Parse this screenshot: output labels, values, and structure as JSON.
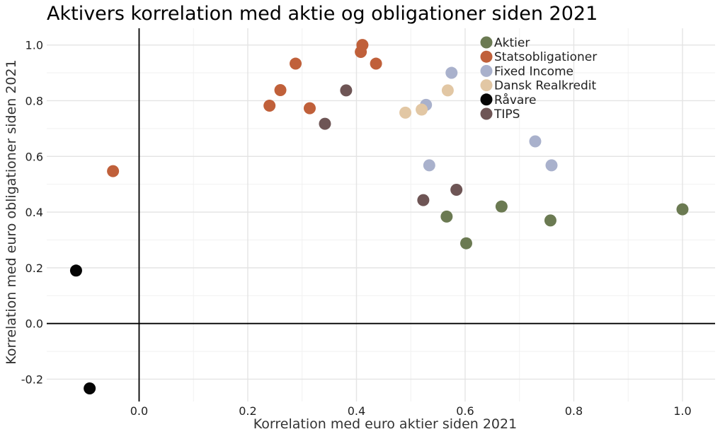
{
  "chart_data": {
    "type": "scatter",
    "title": "Aktivers korrelation med aktie og obligationer siden 2021",
    "xlabel": "Korrelation med euro aktier siden 2021",
    "ylabel": "Korrelation med euro obligationer siden 2021",
    "xlim": [
      -0.17,
      1.06
    ],
    "ylim": [
      -0.28,
      1.06
    ],
    "xticks": [
      0.0,
      0.2,
      0.4,
      0.6,
      0.8,
      1.0
    ],
    "yticks": [
      -0.2,
      0.0,
      0.2,
      0.4,
      0.6,
      0.8,
      1.0
    ],
    "xtick_labels": [
      "0.0",
      "0.2",
      "0.4",
      "0.6",
      "0.8",
      "1.0"
    ],
    "ytick_labels": [
      "-0.2",
      "0.0",
      "0.2",
      "0.4",
      "0.6",
      "0.8",
      "1.0"
    ],
    "grid": true,
    "legend_position": "top-right",
    "series": [
      {
        "name": "Aktier",
        "color": "#6b7a52",
        "points": [
          [
            1.0,
            0.41
          ],
          [
            0.757,
            0.37
          ],
          [
            0.667,
            0.42
          ],
          [
            0.602,
            0.288
          ],
          [
            0.566,
            0.384
          ]
        ]
      },
      {
        "name": "Statsobligationer",
        "color": "#c0603a",
        "points": [
          [
            0.411,
            1.0
          ],
          [
            0.408,
            0.975
          ],
          [
            0.436,
            0.933
          ],
          [
            0.288,
            0.933
          ],
          [
            0.26,
            0.838
          ],
          [
            0.24,
            0.782
          ],
          [
            0.314,
            0.773
          ],
          [
            -0.048,
            0.547
          ]
        ]
      },
      {
        "name": "Fixed Income",
        "color": "#a9b1cc",
        "points": [
          [
            0.575,
            0.9
          ],
          [
            0.528,
            0.785
          ],
          [
            0.729,
            0.654
          ],
          [
            0.759,
            0.568
          ],
          [
            0.534,
            0.568
          ]
        ]
      },
      {
        "name": "Dansk Realkredit",
        "color": "#e2c7a4",
        "points": [
          [
            0.568,
            0.837
          ],
          [
            0.52,
            0.768
          ],
          [
            0.49,
            0.757
          ]
        ]
      },
      {
        "name": "Råvare",
        "color": "#050505",
        "points": [
          [
            -0.116,
            0.19
          ],
          [
            -0.091,
            -0.233
          ]
        ]
      },
      {
        "name": "TIPS",
        "color": "#6e5555",
        "points": [
          [
            0.381,
            0.837
          ],
          [
            0.342,
            0.717
          ],
          [
            0.584,
            0.48
          ],
          [
            0.523,
            0.443
          ]
        ]
      }
    ]
  }
}
